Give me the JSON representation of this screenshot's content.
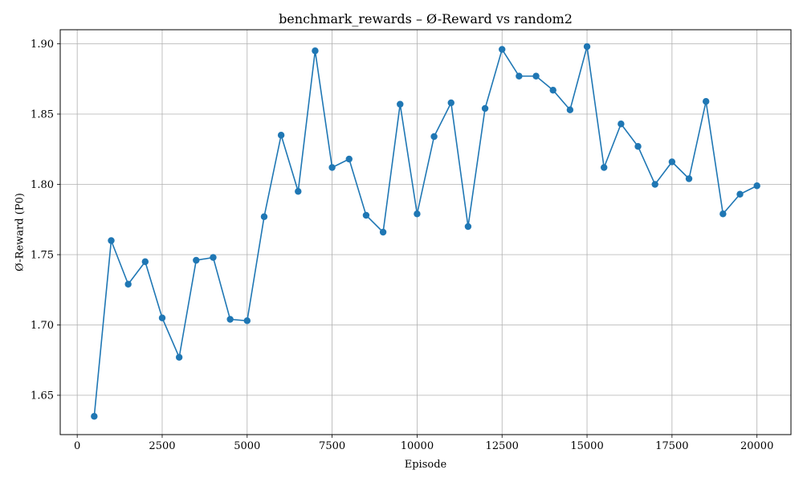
{
  "chart_data": {
    "type": "line",
    "title": "benchmark_rewards – Ø-Reward vs random2",
    "xlabel": "Episode",
    "ylabel": "Ø-Reward (P0)",
    "xlim": [
      -500,
      21000
    ],
    "ylim": [
      1.622,
      1.91
    ],
    "xticks": [
      0,
      2500,
      5000,
      7500,
      10000,
      12500,
      15000,
      17500,
      20000
    ],
    "xtick_labels": [
      "0",
      "2500",
      "5000",
      "7500",
      "10000",
      "12500",
      "15000",
      "17500",
      "20000"
    ],
    "yticks": [
      1.65,
      1.7,
      1.75,
      1.8,
      1.85,
      1.9
    ],
    "ytick_labels": [
      "1.65",
      "1.70",
      "1.75",
      "1.80",
      "1.85",
      "1.90"
    ],
    "grid": true,
    "line_color": "#1f77b4",
    "marker": "circle",
    "series": [
      {
        "x": [
          500,
          1000,
          1500,
          2000,
          2500,
          3000,
          3500,
          4000,
          4500,
          5000,
          5500,
          6000,
          6500,
          7000,
          7500,
          8000,
          8500,
          9000,
          9500,
          10000,
          10500,
          11000,
          11500,
          12000,
          12500,
          13000,
          13500,
          14000,
          14500,
          15000,
          15500,
          16000,
          16500,
          17000,
          17500,
          18000,
          18500,
          19000,
          19500,
          20000
        ],
        "values": [
          1.635,
          1.76,
          1.729,
          1.745,
          1.705,
          1.677,
          1.746,
          1.748,
          1.704,
          1.703,
          1.777,
          1.835,
          1.795,
          1.895,
          1.812,
          1.818,
          1.778,
          1.766,
          1.857,
          1.779,
          1.834,
          1.858,
          1.77,
          1.854,
          1.896,
          1.877,
          1.877,
          1.867,
          1.853,
          1.898,
          1.812,
          1.843,
          1.827,
          1.8,
          1.816,
          1.804,
          1.859,
          1.779,
          1.793,
          1.799
        ]
      }
    ]
  }
}
